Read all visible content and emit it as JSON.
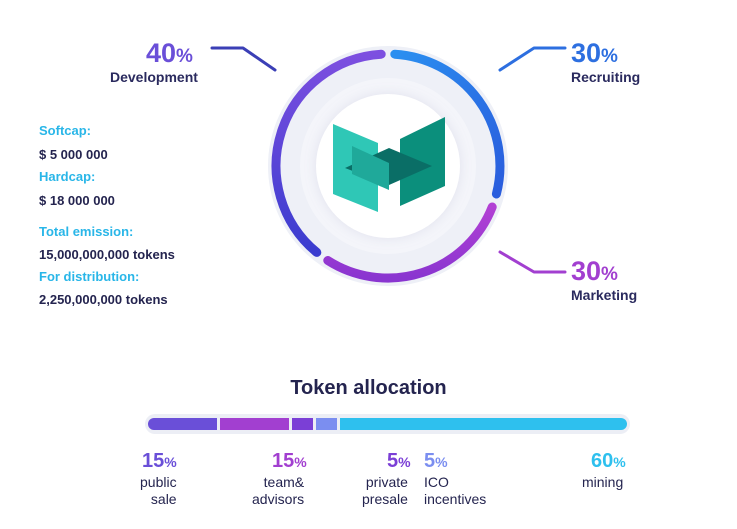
{
  "chart_data": [
    {
      "type": "pie",
      "title": "",
      "slices": [
        {
          "label": "Development",
          "value": 40,
          "pct_text": "40",
          "color": "#6a4fd8"
        },
        {
          "label": "Recruiting",
          "value": 30,
          "pct_text": "30",
          "color": "#2d6fe0"
        },
        {
          "label": "Marketing",
          "value": 30,
          "pct_text": "30",
          "color": "#a23fd0"
        }
      ],
      "legend": "callouts"
    },
    {
      "type": "bar",
      "title": "Token allocation",
      "orientation": "stacked-horizontal",
      "categories": [
        "public sale",
        "team& advisors",
        "private presale",
        "ICO incentives",
        "mining"
      ],
      "values": [
        15,
        15,
        5,
        5,
        60
      ],
      "pct_text": [
        "15",
        "15",
        "5",
        "5",
        "60"
      ],
      "label_lines": [
        [
          "public",
          "sale"
        ],
        [
          "team&",
          "advisors"
        ],
        [
          "private",
          "presale"
        ],
        [
          "ICO",
          "incentives"
        ],
        [
          "mining"
        ]
      ],
      "colors": [
        "#6a4fd8",
        "#a23fd0",
        "#7b3fd6",
        "#7b8ef0",
        "#2ec0ee"
      ]
    }
  ],
  "percent_sign": "%",
  "info": {
    "softcap_label": "Softcap:",
    "softcap_value": "$ 5 000 000",
    "hardcap_label": "Hardcap:",
    "hardcap_value": "$ 18 000 000",
    "emission_label": "Total emission:",
    "emission_value": "15,000,000,000 tokens",
    "distribution_label": "For distribution:",
    "distribution_value": "2,250,000,000 tokens"
  },
  "logo": {
    "name": "m-logo-icon",
    "colors": [
      "#2fc7b6",
      "#0b8f7c",
      "#0a6e66"
    ]
  }
}
